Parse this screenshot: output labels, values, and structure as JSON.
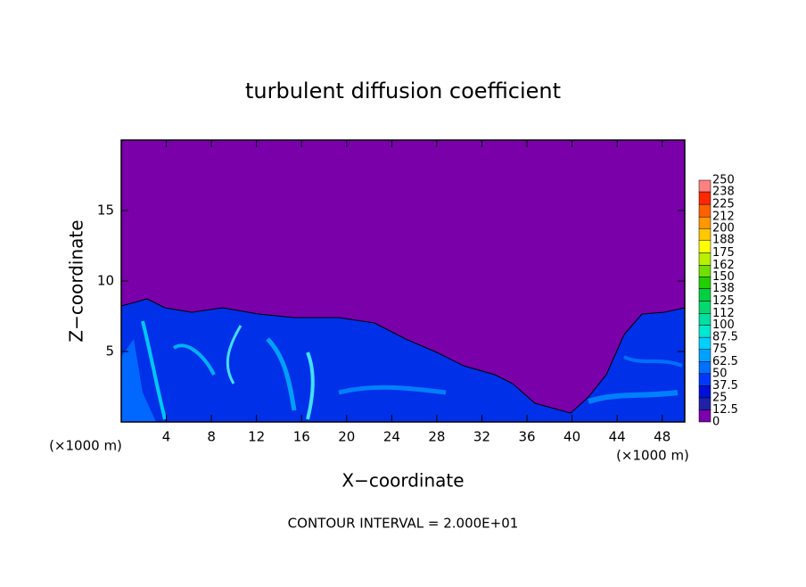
{
  "chart_data": {
    "type": "contour",
    "title": "turbulent diffusion coefficient",
    "x_label": "X−coordinate",
    "y_label": "Z−coordinate",
    "x_unit": "(×1000 m)",
    "y_unit": "(×1000 m)",
    "footer": "CONTOUR INTERVAL = 2.000E+01",
    "xlim": [
      0,
      50
    ],
    "ylim": [
      0,
      20
    ],
    "xticks": [
      4,
      8,
      12,
      16,
      20,
      24,
      28,
      32,
      36,
      40,
      44,
      48
    ],
    "yticks": [
      5,
      10,
      15
    ],
    "background_color": "#7a00aa",
    "colorbar": {
      "lim": [
        0,
        250
      ],
      "ticks": [
        0,
        12.5,
        25,
        37.5,
        50,
        62.5,
        75,
        87.5,
        100,
        112,
        125,
        138,
        150,
        162,
        175,
        188,
        200,
        212,
        225,
        238,
        250
      ],
      "colors": [
        "#7a00aa",
        "#2020a8",
        "#0010d8",
        "#0038ff",
        "#0070ff",
        "#00a0ff",
        "#00d0ff",
        "#00e8d0",
        "#00e0a0",
        "#00d870",
        "#00d040",
        "#20d000",
        "#70e000",
        "#b8f000",
        "#ffff00",
        "#ffc800",
        "#ff9800",
        "#ff6000",
        "#ff2800",
        "#ff8080"
      ]
    }
  }
}
